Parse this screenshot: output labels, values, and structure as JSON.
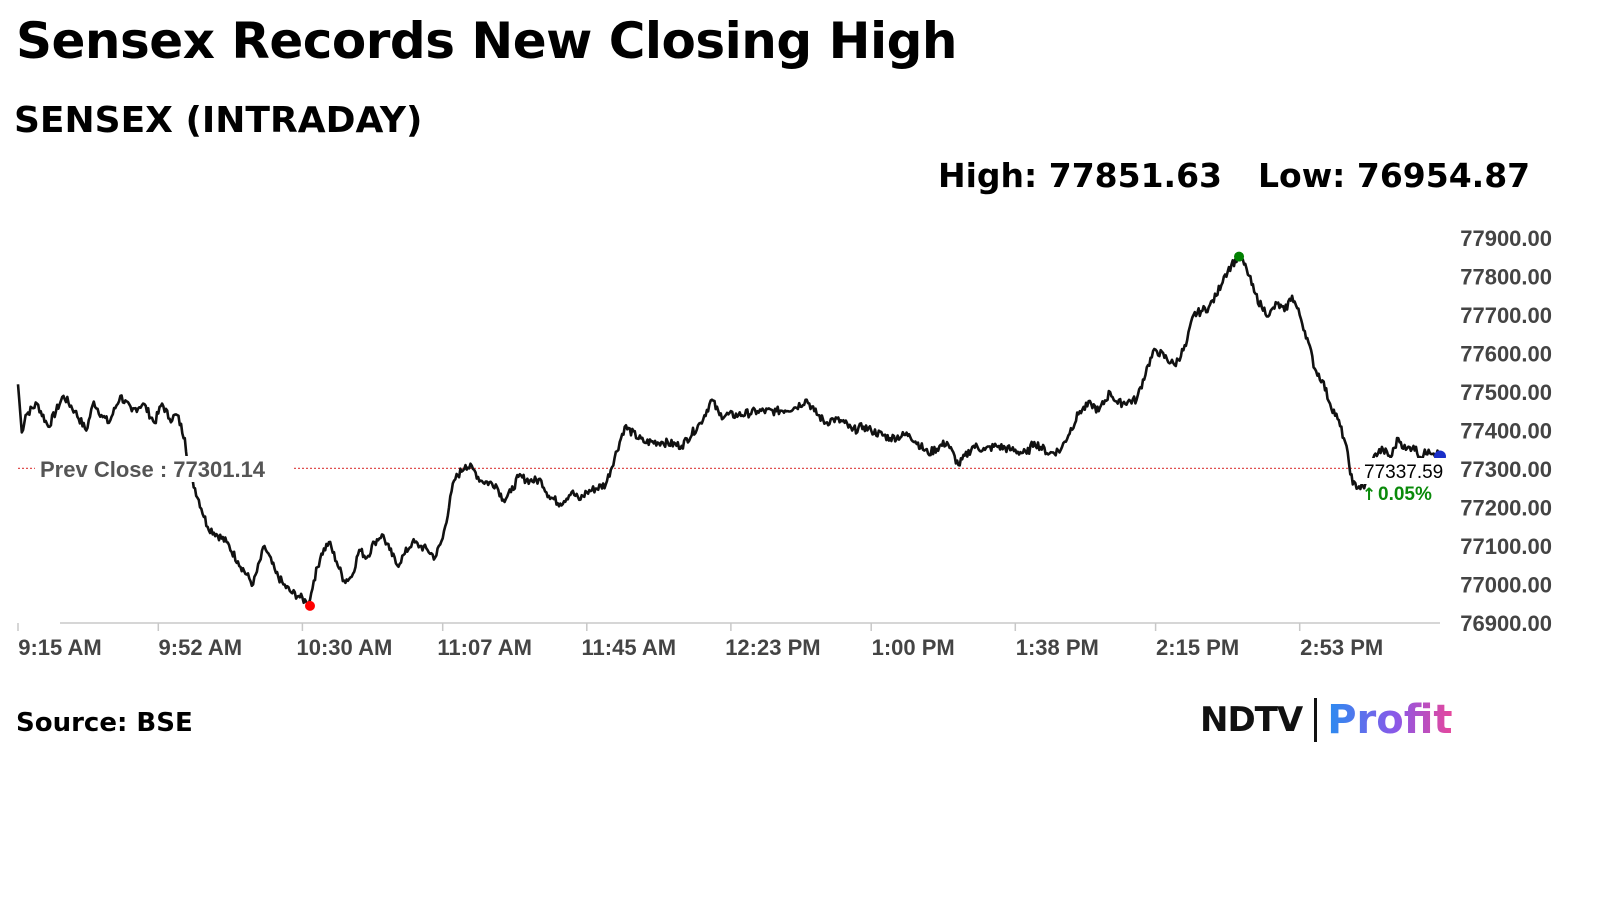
{
  "headline": "Sensex Records New Closing High",
  "chart_title": "SENSEX (INTRADAY)",
  "stats": {
    "high": "High: 77851.63",
    "low": "Low: 76954.87"
  },
  "source": "Source: BSE",
  "brand": {
    "name_left": "NDTV",
    "name_right": "Profit"
  },
  "chart_data": {
    "type": "line",
    "title": "SENSEX (INTRADAY)",
    "xlabel": "",
    "ylabel": "",
    "ylim": [
      76900,
      77900
    ],
    "y_ticks": [
      77900,
      77800,
      77700,
      77600,
      77500,
      77400,
      77300,
      77200,
      77100,
      77000,
      76900
    ],
    "y_tick_labels": [
      "77900.00",
      "77800.00",
      "77700.00",
      "77600.00",
      "77500.00",
      "77400.00",
      "77300.00",
      "77200.00",
      "77100.00",
      "77000.00",
      "76900.00"
    ],
    "x_ticks": [
      "9:15 AM",
      "9:52 AM",
      "10:30 AM",
      "11:07 AM",
      "11:45 AM",
      "12:23 PM",
      "1:00 PM",
      "1:38 PM",
      "2:15 PM",
      "2:53 PM"
    ],
    "x_tick_minutes": [
      0,
      37,
      75,
      112,
      150,
      188,
      225,
      263,
      300,
      338
    ],
    "x_range_minutes": [
      0,
      375
    ],
    "grid": false,
    "prev_close": {
      "label": "Prev Close : 77301.14",
      "value": 77301.14
    },
    "high": {
      "value": 77851.63,
      "time_minutes": 322,
      "color": "#008000"
    },
    "low": {
      "value": 76954.87,
      "time_minutes": 77,
      "color": "#ff0000"
    },
    "last": {
      "value": 77337.59,
      "label": "77337.59",
      "change": "0.05%",
      "arrow": "↑",
      "color": "#0a8a0a",
      "marker_color": "#1a2fc8"
    },
    "series": [
      {
        "x": [
          0,
          1,
          2,
          5,
          8,
          12,
          15,
          18,
          20,
          22,
          24,
          27,
          30,
          33,
          36,
          38,
          40,
          42,
          44,
          45,
          50,
          55,
          58,
          62,
          65,
          68,
          70,
          72,
          74,
          76,
          77,
          78,
          80,
          82,
          84,
          86,
          88,
          90,
          92,
          94,
          96,
          98,
          100,
          102,
          104,
          106,
          108,
          110,
          112,
          115,
          118,
          120,
          122,
          126,
          128,
          130,
          132,
          135,
          138,
          140,
          143,
          146,
          148,
          150,
          155,
          160,
          165,
          170,
          175,
          180,
          183,
          185,
          190,
          195,
          200,
          205,
          208,
          210,
          213,
          215,
          218,
          220,
          223,
          225,
          230,
          235,
          240,
          245,
          248,
          252,
          255,
          258,
          262,
          266,
          268,
          272,
          275,
          280,
          283,
          285,
          288,
          290,
          295,
          298,
          300,
          305,
          308,
          310,
          312,
          314,
          316,
          318,
          320,
          322,
          324,
          326,
          328,
          330,
          332,
          334,
          336,
          338,
          340,
          342,
          344,
          346,
          348,
          350,
          352,
          355,
          358,
          360,
          362,
          364,
          366,
          368,
          370,
          372,
          375
        ],
        "y": [
          77520,
          77395,
          77440,
          77470,
          77410,
          77490,
          77450,
          77400,
          77475,
          77440,
          77420,
          77490,
          77450,
          77470,
          77420,
          77470,
          77430,
          77440,
          77380,
          77300,
          77150,
          77110,
          77060,
          77000,
          77100,
          77030,
          77000,
          76980,
          76970,
          76955,
          76960,
          77010,
          77080,
          77110,
          77060,
          77010,
          77020,
          77090,
          77070,
          77110,
          77130,
          77090,
          77050,
          77080,
          77110,
          77100,
          77090,
          77070,
          77120,
          77270,
          77310,
          77300,
          77270,
          77260,
          77220,
          77240,
          77280,
          77270,
          77270,
          77230,
          77210,
          77240,
          77220,
          77240,
          77260,
          77410,
          77370,
          77370,
          77360,
          77420,
          77480,
          77440,
          77440,
          77450,
          77450,
          77460,
          77480,
          77450,
          77420,
          77430,
          77420,
          77400,
          77410,
          77400,
          77380,
          77390,
          77340,
          77370,
          77310,
          77360,
          77350,
          77360,
          77350,
          77340,
          77370,
          77340,
          77350,
          77450,
          77470,
          77450,
          77500,
          77470,
          77480,
          77570,
          77610,
          77570,
          77620,
          77700,
          77710,
          77720,
          77750,
          77800,
          77830,
          77851,
          77820,
          77760,
          77720,
          77700,
          77730,
          77710,
          77750,
          77700,
          77640,
          77560,
          77530,
          77470,
          77430,
          77370,
          77260,
          77250,
          77340,
          77350,
          77330,
          77380,
          77350,
          77360,
          77330,
          77350,
          77337
        ]
      }
    ]
  }
}
